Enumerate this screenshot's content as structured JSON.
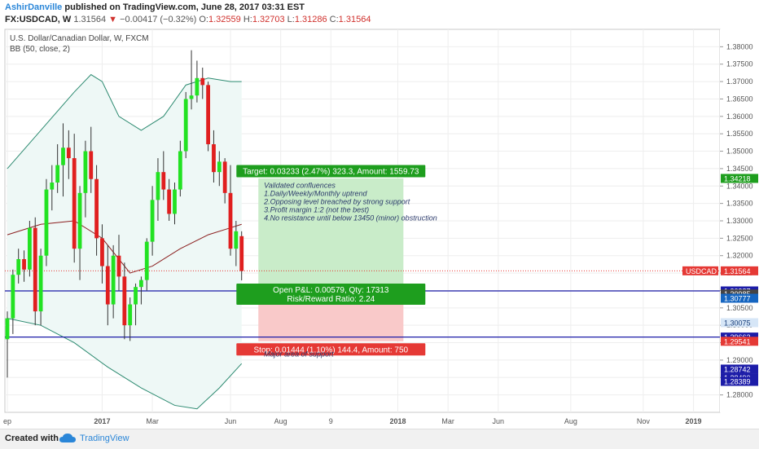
{
  "header": {
    "author": "AshirDanville",
    "published": "published on TradingView.com, June 28, 2017 03:31 EST",
    "symbol": "FX:USDCAD, W",
    "last": "1.31564",
    "change": "−0.00417 (−0.32%)",
    "ohlc": {
      "o_label": "O:",
      "o": "1.32559",
      "h_label": "H:",
      "h": "1.32703",
      "l_label": "L:",
      "l": "1.31286",
      "c_label": "C:",
      "c": "1.31564"
    }
  },
  "legend": {
    "instrument": "U.S. Dollar/Canadian Dollar, W, FXCM",
    "indicator": "BB (50, close, 2)"
  },
  "colors": {
    "up": "#22e222",
    "down": "#e01f1f",
    "band_fill": "#eef8f6",
    "band_line": "#2c8a70",
    "basis": "#8b1f1f",
    "target_fill": "#c9ecc9",
    "stop_fill": "#f9c9c9",
    "level_line": "#1c1ca8"
  },
  "chart_data": {
    "type": "candlestick",
    "title": "U.S. Dollar/Canadian Dollar, W, FXCM",
    "ylim": [
      1.275,
      1.385
    ],
    "y_ticks": [
      "1.38000",
      "1.37500",
      "1.37000",
      "1.36500",
      "1.36000",
      "1.35500",
      "1.35000",
      "1.34500",
      "1.34000",
      "1.33500",
      "1.33000",
      "1.32500",
      "1.32000",
      "1.31500",
      "1.31000",
      "1.30500",
      "1.30000",
      "1.29500",
      "1.29000",
      "1.28500",
      "1.28000"
    ],
    "x_ticks": [
      {
        "label": "ep",
        "x": 0
      },
      {
        "label": "2017",
        "x": 17
      },
      {
        "label": "Mar",
        "x": 26
      },
      {
        "label": "Jun",
        "x": 40
      },
      {
        "label": "Aug",
        "x": 49
      },
      {
        "label": "9",
        "x": 58
      },
      {
        "label": "2018",
        "x": 70
      },
      {
        "label": "Mar",
        "x": 79
      },
      {
        "label": "Jun",
        "x": 88
      },
      {
        "label": "Aug",
        "x": 101
      },
      {
        "label": "Nov",
        "x": 114
      },
      {
        "label": "2019",
        "x": 123
      }
    ],
    "candles": [
      {
        "x": 0,
        "o": 1.296,
        "h": 1.304,
        "l": 1.285,
        "c": 1.302
      },
      {
        "x": 1,
        "o": 1.302,
        "h": 1.316,
        "l": 1.2975,
        "c": 1.3145
      },
      {
        "x": 2,
        "o": 1.3145,
        "h": 1.322,
        "l": 1.312,
        "c": 1.319
      },
      {
        "x": 3,
        "o": 1.319,
        "h": 1.3215,
        "l": 1.3125,
        "c": 1.316
      },
      {
        "x": 4,
        "o": 1.316,
        "h": 1.33,
        "l": 1.314,
        "c": 1.328
      },
      {
        "x": 5,
        "o": 1.328,
        "h": 1.331,
        "l": 1.3,
        "c": 1.304
      },
      {
        "x": 6,
        "o": 1.304,
        "h": 1.322,
        "l": 1.3,
        "c": 1.32
      },
      {
        "x": 7,
        "o": 1.32,
        "h": 1.342,
        "l": 1.317,
        "c": 1.339
      },
      {
        "x": 8,
        "o": 1.339,
        "h": 1.346,
        "l": 1.333,
        "c": 1.341
      },
      {
        "x": 9,
        "o": 1.341,
        "h": 1.352,
        "l": 1.338,
        "c": 1.346
      },
      {
        "x": 10,
        "o": 1.346,
        "h": 1.358,
        "l": 1.337,
        "c": 1.351
      },
      {
        "x": 11,
        "o": 1.351,
        "h": 1.356,
        "l": 1.342,
        "c": 1.348
      },
      {
        "x": 12,
        "o": 1.348,
        "h": 1.355,
        "l": 1.318,
        "c": 1.322
      },
      {
        "x": 13,
        "o": 1.322,
        "h": 1.34,
        "l": 1.313,
        "c": 1.338
      },
      {
        "x": 14,
        "o": 1.338,
        "h": 1.353,
        "l": 1.331,
        "c": 1.35
      },
      {
        "x": 15,
        "o": 1.35,
        "h": 1.357,
        "l": 1.338,
        "c": 1.342
      },
      {
        "x": 16,
        "o": 1.342,
        "h": 1.346,
        "l": 1.32,
        "c": 1.325
      },
      {
        "x": 17,
        "o": 1.325,
        "h": 1.329,
        "l": 1.312,
        "c": 1.317
      },
      {
        "x": 18,
        "o": 1.317,
        "h": 1.323,
        "l": 1.3,
        "c": 1.306
      },
      {
        "x": 19,
        "o": 1.306,
        "h": 1.323,
        "l": 1.302,
        "c": 1.32
      },
      {
        "x": 20,
        "o": 1.32,
        "h": 1.326,
        "l": 1.31,
        "c": 1.314
      },
      {
        "x": 21,
        "o": 1.314,
        "h": 1.318,
        "l": 1.296,
        "c": 1.3
      },
      {
        "x": 22,
        "o": 1.3,
        "h": 1.308,
        "l": 1.2955,
        "c": 1.306
      },
      {
        "x": 23,
        "o": 1.306,
        "h": 1.312,
        "l": 1.3,
        "c": 1.311
      },
      {
        "x": 24,
        "o": 1.311,
        "h": 1.314,
        "l": 1.306,
        "c": 1.313
      },
      {
        "x": 25,
        "o": 1.313,
        "h": 1.325,
        "l": 1.31,
        "c": 1.324
      },
      {
        "x": 26,
        "o": 1.324,
        "h": 1.34,
        "l": 1.32,
        "c": 1.336
      },
      {
        "x": 27,
        "o": 1.336,
        "h": 1.348,
        "l": 1.33,
        "c": 1.344
      },
      {
        "x": 28,
        "o": 1.344,
        "h": 1.35,
        "l": 1.336,
        "c": 1.339
      },
      {
        "x": 29,
        "o": 1.339,
        "h": 1.342,
        "l": 1.33,
        "c": 1.332
      },
      {
        "x": 30,
        "o": 1.332,
        "h": 1.341,
        "l": 1.329,
        "c": 1.339
      },
      {
        "x": 31,
        "o": 1.339,
        "h": 1.353,
        "l": 1.337,
        "c": 1.35
      },
      {
        "x": 32,
        "o": 1.35,
        "h": 1.367,
        "l": 1.348,
        "c": 1.365
      },
      {
        "x": 33,
        "o": 1.365,
        "h": 1.379,
        "l": 1.362,
        "c": 1.366
      },
      {
        "x": 34,
        "o": 1.366,
        "h": 1.376,
        "l": 1.364,
        "c": 1.371
      },
      {
        "x": 35,
        "o": 1.371,
        "h": 1.374,
        "l": 1.365,
        "c": 1.369
      },
      {
        "x": 36,
        "o": 1.369,
        "h": 1.37,
        "l": 1.35,
        "c": 1.352
      },
      {
        "x": 37,
        "o": 1.352,
        "h": 1.356,
        "l": 1.341,
        "c": 1.344
      },
      {
        "x": 38,
        "o": 1.344,
        "h": 1.35,
        "l": 1.34,
        "c": 1.347
      },
      {
        "x": 39,
        "o": 1.347,
        "h": 1.348,
        "l": 1.335,
        "c": 1.338
      },
      {
        "x": 40,
        "o": 1.338,
        "h": 1.346,
        "l": 1.32,
        "c": 1.322
      },
      {
        "x": 41,
        "o": 1.322,
        "h": 1.33,
        "l": 1.317,
        "c": 1.327
      },
      {
        "x": 42,
        "o": 1.3256,
        "h": 1.327,
        "l": 1.3129,
        "c": 1.3156
      }
    ],
    "bb_upper": [
      {
        "x": 0,
        "y": 1.345
      },
      {
        "x": 6,
        "y": 1.356
      },
      {
        "x": 12,
        "y": 1.367
      },
      {
        "x": 15,
        "y": 1.372
      },
      {
        "x": 17,
        "y": 1.37
      },
      {
        "x": 20,
        "y": 1.36
      },
      {
        "x": 24,
        "y": 1.356
      },
      {
        "x": 28,
        "y": 1.36
      },
      {
        "x": 32,
        "y": 1.369
      },
      {
        "x": 36,
        "y": 1.371
      },
      {
        "x": 40,
        "y": 1.37
      },
      {
        "x": 42,
        "y": 1.37
      }
    ],
    "bb_basis": [
      {
        "x": 0,
        "y": 1.326
      },
      {
        "x": 6,
        "y": 1.329
      },
      {
        "x": 12,
        "y": 1.33
      },
      {
        "x": 17,
        "y": 1.325
      },
      {
        "x": 22,
        "y": 1.315
      },
      {
        "x": 26,
        "y": 1.317
      },
      {
        "x": 31,
        "y": 1.322
      },
      {
        "x": 36,
        "y": 1.326
      },
      {
        "x": 40,
        "y": 1.328
      },
      {
        "x": 42,
        "y": 1.329
      }
    ],
    "bb_lower": [
      {
        "x": 0,
        "y": 1.302
      },
      {
        "x": 6,
        "y": 1.3
      },
      {
        "x": 12,
        "y": 1.295
      },
      {
        "x": 18,
        "y": 1.288
      },
      {
        "x": 24,
        "y": 1.282
      },
      {
        "x": 30,
        "y": 1.277
      },
      {
        "x": 34,
        "y": 1.276
      },
      {
        "x": 38,
        "y": 1.282
      },
      {
        "x": 42,
        "y": 1.289
      }
    ],
    "bb_x_range": [
      0,
      42
    ],
    "levels": [
      {
        "y": 1.30987,
        "kind": "line"
      },
      {
        "y": 1.29662,
        "kind": "line"
      },
      {
        "y": 1.31564,
        "kind": "dotted"
      }
    ],
    "position": {
      "x_from": 45,
      "x_to": 71,
      "target_price": 1.34218,
      "entry_price": 1.30987,
      "stop_price": 1.29541,
      "target_label": "Target: 0.03233 (2.47%) 323.3, Amount: 1559.73",
      "pnl_label": "Open P&L: 0.00579, Qty: 17313",
      "rr_label": "Risk/Reward Ratio: 2.24",
      "stop_label": "Stop: 0.01444 (1.10%) 144.4, Amount: 750"
    },
    "annotations": {
      "confluences": [
        "Validated confluences",
        "1.Daily/Weekly/Monthly uptrend",
        "2.Opposing level breached by strong support",
        "3.Profit margin 1:2 (not the best)",
        "4.No resistance until below 13450 (minor) obstruction"
      ],
      "confluences_at": {
        "x": 46,
        "y": 1.3395
      },
      "support": "Major area of support",
      "support_at": {
        "x": 46,
        "y": 1.291
      }
    },
    "price_tags": [
      {
        "text": "1.34218",
        "y": 1.34218,
        "bg": "#1e9e1e",
        "fg": "#ffffff"
      },
      {
        "text": "1.31564",
        "y": 1.31564,
        "bg": "#e53935",
        "fg": "#ffffff",
        "label": "USDCAD"
      },
      {
        "text": "1.30987",
        "y": 1.30987,
        "bg": "#1c1ca8",
        "fg": "#ffffff"
      },
      {
        "text": "1.30985",
        "y": 1.309,
        "bg": "#444444",
        "fg": "#ffffff"
      },
      {
        "text": "1.30777",
        "y": 1.30777,
        "bg": "#1565c0",
        "fg": "#ffffff"
      },
      {
        "text": "1.30075",
        "y": 1.30075,
        "bg": "#d6e6f7",
        "fg": "#1a3f7a"
      },
      {
        "text": "1.29662",
        "y": 1.29662,
        "bg": "#1c1ca8",
        "fg": "#ffffff"
      },
      {
        "text": "1.29541",
        "y": 1.29541,
        "bg": "#e53935",
        "fg": "#ffffff"
      },
      {
        "text": "1.28742",
        "y": 1.28742,
        "bg": "#1c1ca8",
        "fg": "#ffffff"
      },
      {
        "text": "1.28490",
        "y": 1.2849,
        "bg": "#1c1ca8",
        "fg": "#ffffff"
      },
      {
        "text": "1.28389",
        "y": 1.28389,
        "bg": "#1c1ca8",
        "fg": "#ffffff"
      }
    ],
    "grid": true,
    "legend_position": "top-left"
  },
  "footer": {
    "created_with": "Created with",
    "brand": "TradingView"
  }
}
